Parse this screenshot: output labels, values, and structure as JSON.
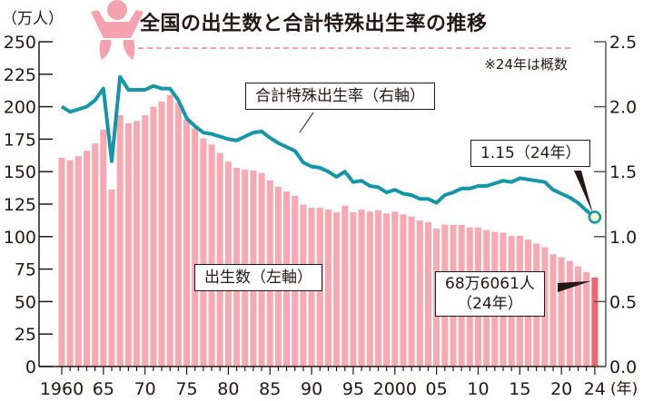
{
  "title": "全国の出生数と合計特殊出生率の推移",
  "note": "※24年は概数",
  "icon": "baby-icon",
  "colors": {
    "bar": "#f7a8b0",
    "bar_highlight": "#ee6672",
    "line": "#1296a8",
    "marker_fill": "#fafac8",
    "text": "#231815",
    "rule": "#f2a3ad"
  },
  "callouts": {
    "tfr_series": "合計特殊出生率（右軸）",
    "births_series": "出生数（左軸）",
    "tfr_2024": "1.15（24年）",
    "births_2024_line1": "68万6061人",
    "births_2024_line2": "（24年）"
  },
  "chart_data": {
    "type": "bar+line",
    "title": "全国の出生数と合計特殊出生率の推移",
    "xlabel": "(年)",
    "ylabel_left": "（万人）",
    "ylabel_right": "",
    "ylim_left": [
      0,
      250
    ],
    "ylim_right": [
      0.0,
      2.5
    ],
    "left_ticks": [
      "0",
      "25",
      "50",
      "75",
      "100",
      "125",
      "150",
      "175",
      "200",
      "225",
      "250"
    ],
    "right_ticks": [
      "0.0",
      "0.5",
      "1.0",
      "1.5",
      "2.0",
      "2.5"
    ],
    "x_ticks": [
      {
        "year": 1960,
        "label": "1960"
      },
      {
        "year": 1965,
        "label": "65"
      },
      {
        "year": 1970,
        "label": "70"
      },
      {
        "year": 1975,
        "label": "75"
      },
      {
        "year": 1980,
        "label": "80"
      },
      {
        "year": 1985,
        "label": "85"
      },
      {
        "year": 1990,
        "label": "90"
      },
      {
        "year": 1995,
        "label": "95"
      },
      {
        "year": 2000,
        "label": "2000"
      },
      {
        "year": 2005,
        "label": "05"
      },
      {
        "year": 2010,
        "label": "10"
      },
      {
        "year": 2015,
        "label": "15"
      },
      {
        "year": 2020,
        "label": "20"
      },
      {
        "year": 2024,
        "label": "24"
      }
    ],
    "x": [
      1960,
      1961,
      1962,
      1963,
      1964,
      1965,
      1966,
      1967,
      1968,
      1969,
      1970,
      1971,
      1972,
      1973,
      1974,
      1975,
      1976,
      1977,
      1978,
      1979,
      1980,
      1981,
      1982,
      1983,
      1984,
      1985,
      1986,
      1987,
      1988,
      1989,
      1990,
      1991,
      1992,
      1993,
      1994,
      1995,
      1996,
      1997,
      1998,
      1999,
      2000,
      2001,
      2002,
      2003,
      2004,
      2005,
      2006,
      2007,
      2008,
      2009,
      2010,
      2011,
      2012,
      2013,
      2014,
      2015,
      2016,
      2017,
      2018,
      2019,
      2020,
      2021,
      2022,
      2023,
      2024
    ],
    "series": [
      {
        "name": "出生数（左軸）",
        "type": "bar",
        "axis": "left",
        "unit": "万人",
        "values": [
          160.6,
          158.9,
          161.9,
          166.0,
          171.7,
          182.4,
          136.1,
          193.6,
          187.2,
          189.0,
          193.4,
          200.1,
          203.9,
          209.2,
          203.0,
          190.1,
          183.3,
          175.5,
          170.9,
          164.3,
          157.7,
          152.9,
          151.5,
          150.9,
          149.0,
          143.2,
          138.3,
          134.7,
          131.4,
          124.7,
          122.2,
          122.3,
          120.9,
          118.8,
          123.8,
          118.7,
          120.7,
          119.2,
          120.3,
          117.8,
          119.1,
          117.1,
          115.4,
          112.4,
          111.1,
          106.3,
          109.3,
          109.0,
          109.1,
          107.0,
          107.1,
          105.1,
          103.7,
          103.0,
          100.4,
          100.6,
          97.7,
          94.6,
          91.8,
          86.5,
          84.1,
          81.2,
          77.1,
          72.7,
          68.6
        ]
      },
      {
        "name": "合計特殊出生率（右軸）",
        "type": "line",
        "axis": "right",
        "values": [
          2.0,
          1.96,
          1.98,
          2.0,
          2.05,
          2.14,
          1.58,
          2.23,
          2.13,
          2.13,
          2.13,
          2.16,
          2.14,
          2.14,
          2.05,
          1.91,
          1.85,
          1.8,
          1.79,
          1.77,
          1.75,
          1.74,
          1.77,
          1.8,
          1.81,
          1.76,
          1.72,
          1.69,
          1.66,
          1.57,
          1.54,
          1.53,
          1.5,
          1.46,
          1.5,
          1.42,
          1.43,
          1.39,
          1.38,
          1.34,
          1.36,
          1.33,
          1.32,
          1.29,
          1.29,
          1.26,
          1.32,
          1.34,
          1.37,
          1.37,
          1.39,
          1.39,
          1.41,
          1.43,
          1.42,
          1.45,
          1.44,
          1.43,
          1.42,
          1.36,
          1.33,
          1.3,
          1.26,
          1.2,
          1.15
        ]
      }
    ],
    "annotations": [
      {
        "text": "1.15（24年）",
        "series": "合計特殊出生率（右軸）",
        "year": 2024,
        "value": 1.15
      },
      {
        "text": "68万6061人（24年）",
        "series": "出生数（左軸）",
        "year": 2024,
        "value": 68.6061
      }
    ],
    "grid": false,
    "legend": "inline callouts"
  }
}
